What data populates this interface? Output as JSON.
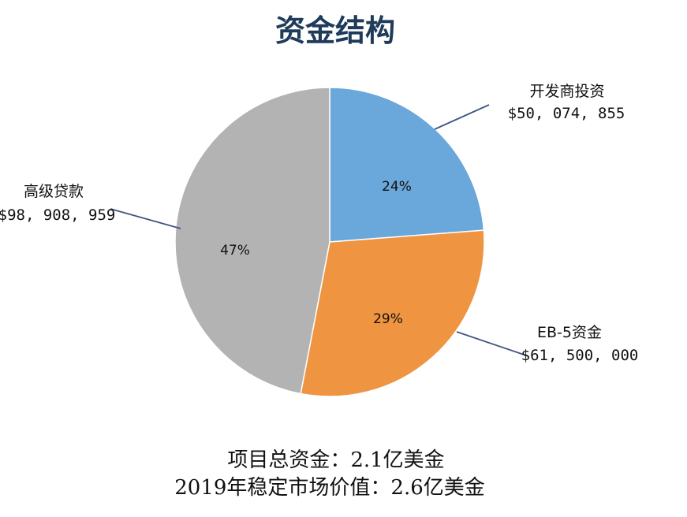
{
  "chart_data": {
    "type": "pie",
    "title": "资金结构",
    "slices": [
      {
        "label": "开发商投资",
        "amount": "$50, 074, 855",
        "value": 50074855,
        "percent_label": "24%",
        "color": "#6aa7da"
      },
      {
        "label": "EB-5资金",
        "amount": "$61, 500, 000",
        "value": 61500000,
        "percent_label": "29%",
        "color": "#ef9440"
      },
      {
        "label": "高级贷款",
        "amount": "$98, 908, 959",
        "value": 98908959,
        "percent_label": "47%",
        "color": "#b3b3b3"
      }
    ],
    "start_angle": "12 o'clock",
    "direction": "clockwise",
    "legend": "none"
  },
  "footer": {
    "line1": "项目总资金：2.1亿美金",
    "line2": "2019年稳定市场价值：2.6亿美金"
  }
}
